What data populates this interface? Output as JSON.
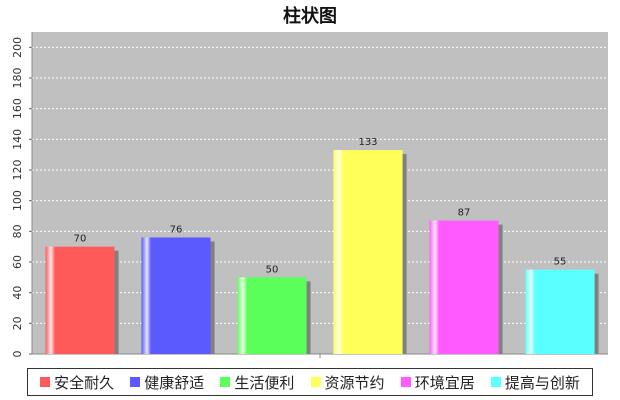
{
  "chart_data": {
    "type": "bar",
    "title": "柱状图",
    "categories": [
      "安全耐久",
      "健康舒适",
      "生活便利",
      "资源节约",
      "环境宜居",
      "提高与创新"
    ],
    "values": [
      70,
      76,
      50,
      133,
      87,
      55
    ],
    "colors": [
      "#ff5a5a",
      "#5a5aff",
      "#5aff5a",
      "#ffff5a",
      "#ff5aff",
      "#5affff"
    ],
    "ylim": [
      0,
      210
    ],
    "yticks": [
      0,
      20,
      40,
      60,
      80,
      100,
      120,
      140,
      160,
      180,
      200
    ],
    "grid": true,
    "legend_position": "bottom",
    "plot_background": "#c0c0c0"
  }
}
